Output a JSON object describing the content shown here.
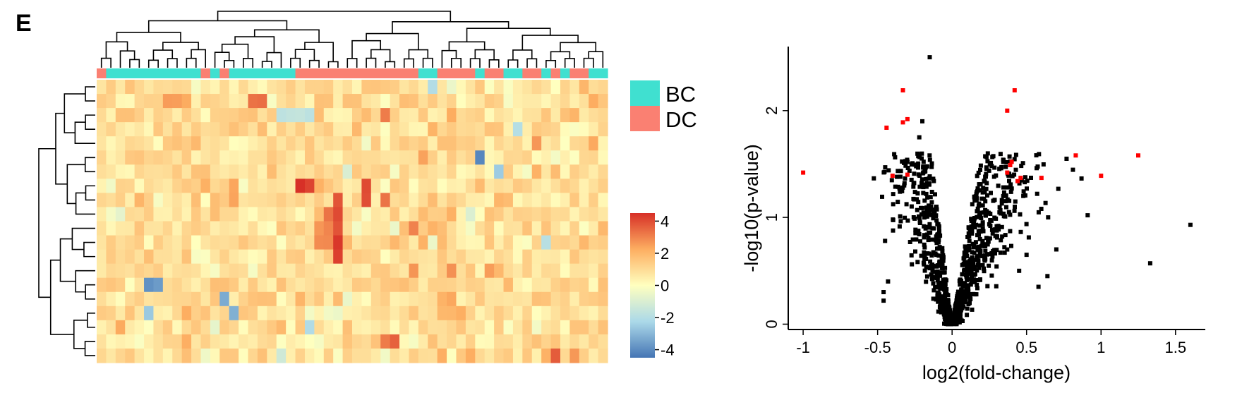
{
  "panel_label": "E",
  "colors": {
    "BC": "#40e0d0",
    "DC": "#fa8072",
    "highlight": "#ff0000",
    "point": "#000000"
  },
  "chart_data": [
    {
      "type": "heatmap",
      "n_rows": 20,
      "n_cols": 54,
      "annotation": [
        "DC",
        "BC",
        "BC",
        "BC",
        "BC",
        "BC",
        "BC",
        "BC",
        "BC",
        "BC",
        "BC",
        "DC",
        "BC",
        "DC",
        "BC",
        "BC",
        "BC",
        "BC",
        "BC",
        "BC",
        "BC",
        "DC",
        "DC",
        "DC",
        "DC",
        "DC",
        "DC",
        "DC",
        "DC",
        "DC",
        "DC",
        "DC",
        "DC",
        "DC",
        "BC",
        "BC",
        "DC",
        "DC",
        "DC",
        "DC",
        "BC",
        "DC",
        "DC",
        "BC",
        "BC",
        "DC",
        "DC",
        "BC",
        "DC",
        "BC",
        "DC",
        "DC",
        "BC",
        "BC"
      ],
      "legend": [
        {
          "key": "BC",
          "label": "BC"
        },
        {
          "key": "DC",
          "label": "DC"
        }
      ],
      "color_scale": {
        "range": [
          -4.5,
          4.5
        ],
        "ticks": [
          "4",
          "2",
          "0",
          "-2",
          "-4"
        ],
        "tick_values": [
          4,
          2,
          0,
          -2,
          -4
        ]
      },
      "row_dendrogram": true,
      "column_dendrogram": true
    },
    {
      "type": "scatter",
      "xlabel": "log2(fold-change)",
      "ylabel": "-log10(p-value)",
      "xlim": [
        -1.1,
        1.7
      ],
      "ylim": [
        -0.05,
        2.6
      ],
      "xticks": [
        -1,
        -0.5,
        0,
        0.5,
        1,
        1.5
      ],
      "xtick_labels": [
        "-1",
        "-0.5",
        "0",
        "0.5",
        "1",
        "1.5"
      ],
      "yticks": [
        0,
        1,
        2
      ],
      "ytick_labels": [
        "0",
        "1",
        "2"
      ],
      "significant_points": [
        [
          -1.0,
          1.42
        ],
        [
          -0.44,
          1.84
        ],
        [
          -0.33,
          2.19
        ],
        [
          -0.33,
          1.89
        ],
        [
          -0.3,
          1.92
        ],
        [
          -0.4,
          1.39
        ],
        [
          -0.3,
          1.4
        ],
        [
          0.37,
          2.0
        ],
        [
          0.42,
          2.19
        ],
        [
          0.37,
          1.42
        ],
        [
          0.39,
          1.49
        ],
        [
          0.4,
          1.52
        ],
        [
          0.44,
          1.34
        ],
        [
          0.46,
          1.37
        ],
        [
          0.6,
          1.37
        ],
        [
          0.83,
          1.58
        ],
        [
          1.0,
          1.39
        ],
        [
          1.25,
          1.58
        ]
      ],
      "outlier_points": [
        [
          -0.15,
          2.5
        ],
        [
          -0.2,
          1.9
        ],
        [
          -0.45,
          0.78
        ],
        [
          -0.46,
          0.22
        ],
        [
          -0.22,
          1.75
        ],
        [
          0.91,
          1.02
        ],
        [
          1.6,
          0.93
        ],
        [
          1.33,
          0.57
        ],
        [
          0.7,
          0.7
        ],
        [
          0.64,
          0.45
        ],
        [
          0.58,
          0.35
        ],
        [
          0.5,
          0.65
        ],
        [
          0.45,
          0.5
        ],
        [
          -0.46,
          0.3
        ],
        [
          -0.43,
          0.4
        ]
      ],
      "cloud_point_count": 900
    }
  ]
}
